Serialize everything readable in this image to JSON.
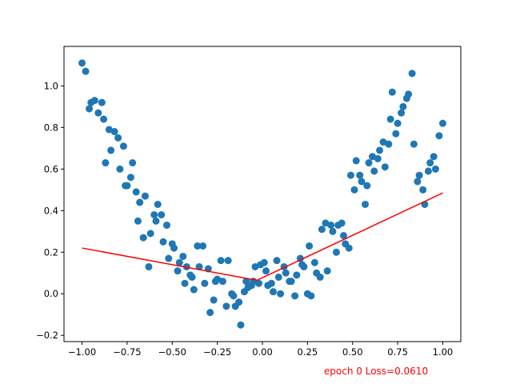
{
  "colors": {
    "scatter": "#1f77b4",
    "fit_line": "#ff0000",
    "annotation": "#ff0000",
    "axes": "#000000",
    "background": "#ffffff"
  },
  "chart_data": {
    "type": "scatter",
    "title": "",
    "xlabel": "",
    "ylabel": "",
    "xlim": [
      -1.1,
      1.1
    ],
    "ylim": [
      -0.23,
      1.19
    ],
    "grid": false,
    "xticks": [
      -1.0,
      -0.75,
      -0.5,
      -0.25,
      0.0,
      0.25,
      0.5,
      0.75,
      1.0
    ],
    "xtick_labels": [
      "−1.00",
      "−0.75",
      "−0.50",
      "−0.25",
      "0.00",
      "0.25",
      "0.50",
      "0.75",
      "1.00"
    ],
    "yticks": [
      -0.2,
      0.0,
      0.2,
      0.4,
      0.6,
      0.8,
      1.0
    ],
    "ytick_labels": [
      "−0.2",
      "0.0",
      "0.2",
      "0.4",
      "0.6",
      "0.8",
      "1.0"
    ],
    "annotation": "epoch 0 Loss=0.0610",
    "series": [
      {
        "type": "scatter",
        "x": [
          -1.0,
          -0.98,
          -0.96,
          -0.95,
          -0.93,
          -0.91,
          -0.89,
          -0.88,
          -0.87,
          -0.85,
          -0.84,
          -0.82,
          -0.8,
          -0.79,
          -0.77,
          -0.76,
          -0.75,
          -0.73,
          -0.72,
          -0.7,
          -0.69,
          -0.68,
          -0.66,
          -0.65,
          -0.63,
          -0.62,
          -0.6,
          -0.59,
          -0.58,
          -0.56,
          -0.55,
          -0.53,
          -0.52,
          -0.5,
          -0.49,
          -0.47,
          -0.46,
          -0.44,
          -0.43,
          -0.42,
          -0.4,
          -0.39,
          -0.38,
          -0.36,
          -0.35,
          -0.33,
          -0.32,
          -0.3,
          -0.29,
          -0.27,
          -0.26,
          -0.25,
          -0.23,
          -0.22,
          -0.2,
          -0.19,
          -0.17,
          -0.16,
          -0.15,
          -0.13,
          -0.12,
          -0.1,
          -0.09,
          -0.08,
          -0.06,
          -0.05,
          -0.04,
          -0.02,
          -0.01,
          0.01,
          0.02,
          0.03,
          0.05,
          0.06,
          0.08,
          0.09,
          0.1,
          0.12,
          0.13,
          0.15,
          0.16,
          0.18,
          0.19,
          0.21,
          0.22,
          0.23,
          0.25,
          0.26,
          0.27,
          0.29,
          0.3,
          0.32,
          0.33,
          0.35,
          0.36,
          0.38,
          0.39,
          0.41,
          0.42,
          0.44,
          0.45,
          0.46,
          0.48,
          0.49,
          0.51,
          0.52,
          0.54,
          0.55,
          0.57,
          0.58,
          0.59,
          0.61,
          0.62,
          0.64,
          0.65,
          0.67,
          0.68,
          0.7,
          0.71,
          0.72,
          0.74,
          0.75,
          0.77,
          0.78,
          0.8,
          0.81,
          0.83,
          0.84,
          0.86,
          0.87,
          0.89,
          0.9,
          0.92,
          0.93,
          0.95,
          0.96,
          0.98,
          1.0
        ],
        "y": [
          1.11,
          1.07,
          0.89,
          0.92,
          0.93,
          0.87,
          0.92,
          0.84,
          0.63,
          0.79,
          0.69,
          0.78,
          0.75,
          0.6,
          0.71,
          0.52,
          0.52,
          0.56,
          0.63,
          0.49,
          0.35,
          0.44,
          0.27,
          0.47,
          0.13,
          0.29,
          0.38,
          0.35,
          0.43,
          0.38,
          0.25,
          0.33,
          0.17,
          0.24,
          0.22,
          0.11,
          0.15,
          0.18,
          0.05,
          0.13,
          0.09,
          0.08,
          0.02,
          0.23,
          0.13,
          0.23,
          0.05,
          0.12,
          -0.09,
          -0.03,
          0.06,
          0.07,
          0.16,
          0.06,
          -0.06,
          0.16,
          0.0,
          -0.01,
          -0.06,
          -0.04,
          -0.15,
          0.01,
          0.06,
          0.03,
          0.04,
          0.06,
          0.13,
          0.05,
          0.14,
          0.15,
          0.11,
          0.04,
          0.05,
          0.01,
          0.16,
          0.08,
          0.0,
          0.13,
          0.1,
          0.06,
          0.06,
          -0.01,
          0.09,
          0.17,
          0.14,
          0.13,
          0.0,
          0.23,
          -0.01,
          0.15,
          0.1,
          0.08,
          0.31,
          0.34,
          0.11,
          0.33,
          0.3,
          0.2,
          0.33,
          0.34,
          0.28,
          0.24,
          0.22,
          0.57,
          0.5,
          0.64,
          0.57,
          0.54,
          0.43,
          0.52,
          0.63,
          0.66,
          0.59,
          0.65,
          0.69,
          0.73,
          0.61,
          0.72,
          0.84,
          0.97,
          0.77,
          0.82,
          0.87,
          0.9,
          0.94,
          0.96,
          1.06,
          0.72,
          0.54,
          0.57,
          0.5,
          0.43,
          0.59,
          0.63,
          0.66,
          0.6,
          0.76,
          0.82
        ]
      },
      {
        "type": "line",
        "x": [
          -1.0,
          -0.03,
          1.0
        ],
        "y": [
          0.22,
          0.065,
          0.485
        ]
      }
    ]
  }
}
